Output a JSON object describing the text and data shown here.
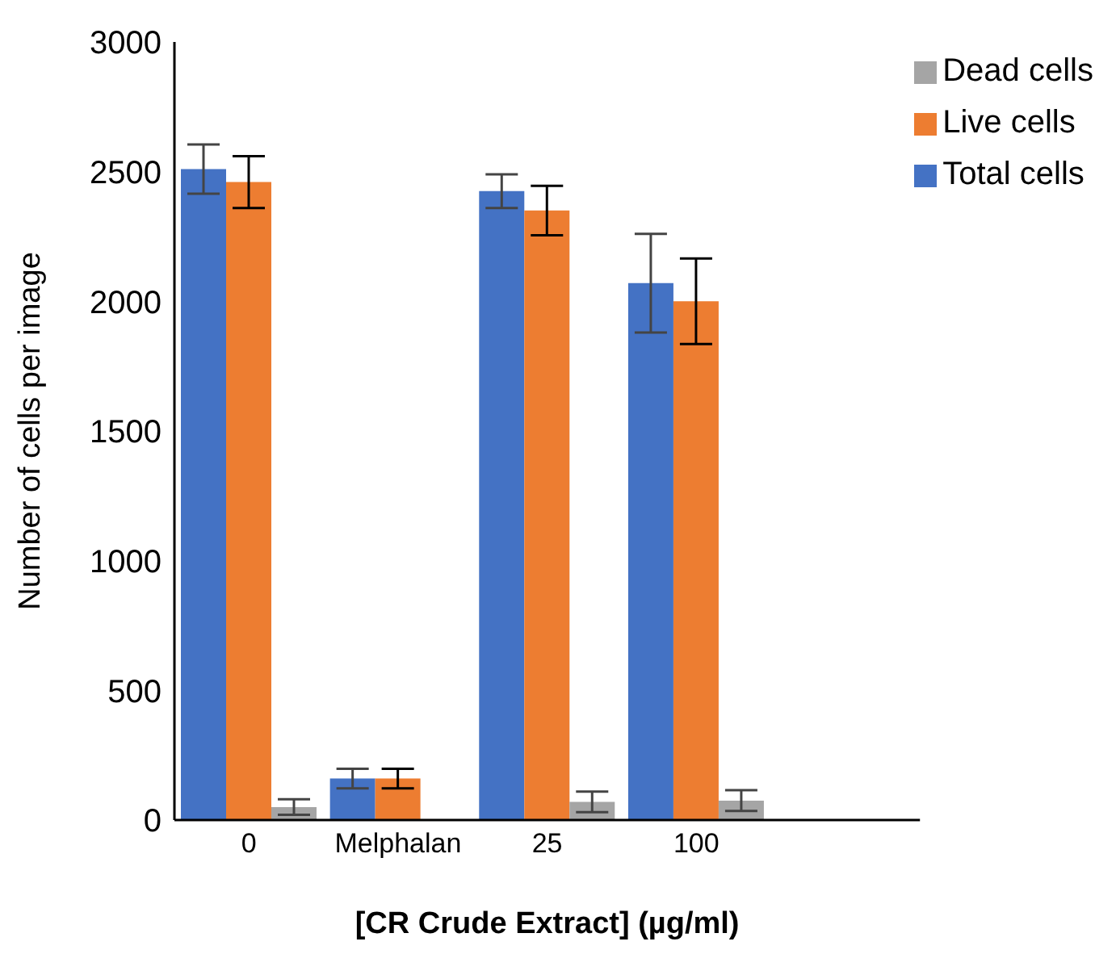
{
  "chart_data": {
    "type": "bar",
    "xlabel": "[CR Crude Extract]  (µg/ml)",
    "ylabel": "Number of cells per image",
    "categories": [
      "0",
      "Melphalan",
      "25",
      "100",
      null
    ],
    "series": [
      {
        "name": "Total cells",
        "color": "#4472c4",
        "values": [
          2510,
          160,
          2425,
          2070,
          null
        ],
        "errors": [
          95,
          38,
          65,
          190,
          null
        ]
      },
      {
        "name": "Live cells",
        "color": "#ed7d31",
        "values": [
          2460,
          160,
          2350,
          2000,
          null
        ],
        "errors": [
          100,
          38,
          95,
          165,
          null
        ]
      },
      {
        "name": "Dead cells",
        "color": "#a5a5a5",
        "values": [
          50,
          0,
          70,
          75,
          null
        ],
        "errors": [
          30,
          null,
          40,
          40,
          null
        ]
      }
    ],
    "ylim": [
      0,
      3000
    ],
    "yticks": [
      0,
      500,
      1000,
      1500,
      2000,
      2500,
      3000
    ],
    "grid": false,
    "legend": "top right"
  }
}
